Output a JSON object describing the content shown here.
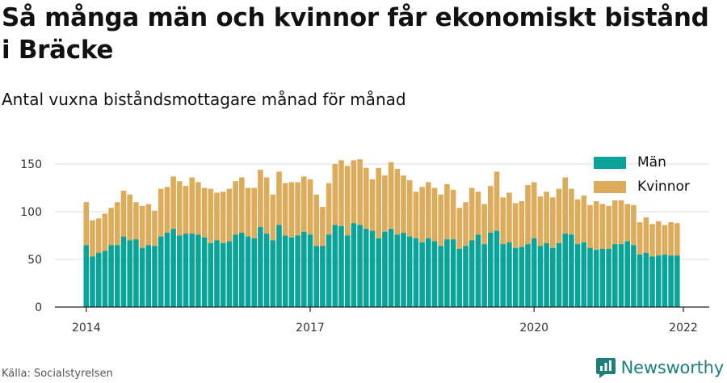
{
  "header": {
    "title": "Så många män och kvinnor får ekonomiskt bistånd i Bräcke",
    "subtitle": "Antal vuxna biståndsmottagare månad för månad"
  },
  "footer": {
    "source": "Källa: Socialstyrelsen",
    "brand": "Newsworthy",
    "brand_icon": "newsworthy-logo-icon"
  },
  "colors": {
    "men": "#0aa39a",
    "women": "#ddac5a",
    "grid": "#dddddd",
    "axis": "#222222",
    "brand": "#1d7f7a"
  },
  "chart_data": {
    "type": "bar",
    "stacked": true,
    "title": "Så många män och kvinnor får ekonomiskt bistånd i Bräcke",
    "subtitle": "Antal vuxna biståndsmottagare månad för månad",
    "xlabel": "",
    "ylabel": "",
    "ylim": [
      0,
      170
    ],
    "yticks": [
      0,
      50,
      100,
      150
    ],
    "x_tick_labels": [
      {
        "label": "2014",
        "year": 2014
      },
      {
        "label": "2017",
        "year": 2017
      },
      {
        "label": "2020",
        "year": 2020
      },
      {
        "label": "2022",
        "year": 2022
      }
    ],
    "x_start": "2014-01",
    "x_end": "2022-01",
    "grid": true,
    "legend": "top-right",
    "series": [
      {
        "name": "Män",
        "color": "#0aa39a",
        "values": [
          65,
          53,
          57,
          59,
          65,
          65,
          74,
          70,
          71,
          62,
          65,
          64,
          74,
          78,
          82,
          75,
          77,
          77,
          76,
          73,
          67,
          70,
          67,
          69,
          76,
          78,
          74,
          72,
          84,
          77,
          70,
          86,
          75,
          73,
          75,
          79,
          76,
          64,
          64,
          76,
          86,
          85,
          75,
          88,
          86,
          82,
          80,
          72,
          79,
          82,
          76,
          78,
          74,
          72,
          68,
          72,
          69,
          64,
          71,
          71,
          61,
          64,
          70,
          76,
          66,
          78,
          80,
          66,
          68,
          62,
          63,
          66,
          72,
          64,
          67,
          62,
          67,
          77,
          76,
          66,
          68,
          62,
          60,
          61,
          61,
          66,
          66,
          69,
          65,
          55,
          57,
          53,
          54,
          55,
          54,
          54
        ],
        "totals": [
          110,
          91,
          93,
          98,
          104,
          110,
          122,
          118,
          110,
          106,
          108,
          101,
          124,
          126,
          137,
          132,
          127,
          136,
          131,
          125,
          124,
          120,
          121,
          124,
          132,
          136,
          125,
          125,
          144,
          136,
          118,
          142,
          130,
          131,
          131,
          137,
          134,
          118,
          105,
          130,
          150,
          154,
          148,
          154,
          155,
          146,
          134,
          146,
          138,
          152,
          145,
          138,
          133,
          121,
          126,
          131,
          125,
          118,
          129,
          123,
          104,
          110,
          125,
          121,
          108,
          127,
          142,
          115,
          120,
          109,
          111,
          128,
          131,
          116,
          121,
          115,
          124,
          136,
          124,
          113,
          117,
          107,
          111,
          108,
          106,
          112,
          112,
          108,
          107,
          89,
          94,
          87,
          90,
          86,
          89,
          88
        ]
      },
      {
        "name": "Kvinnor",
        "color": "#ddac5a"
      }
    ]
  }
}
